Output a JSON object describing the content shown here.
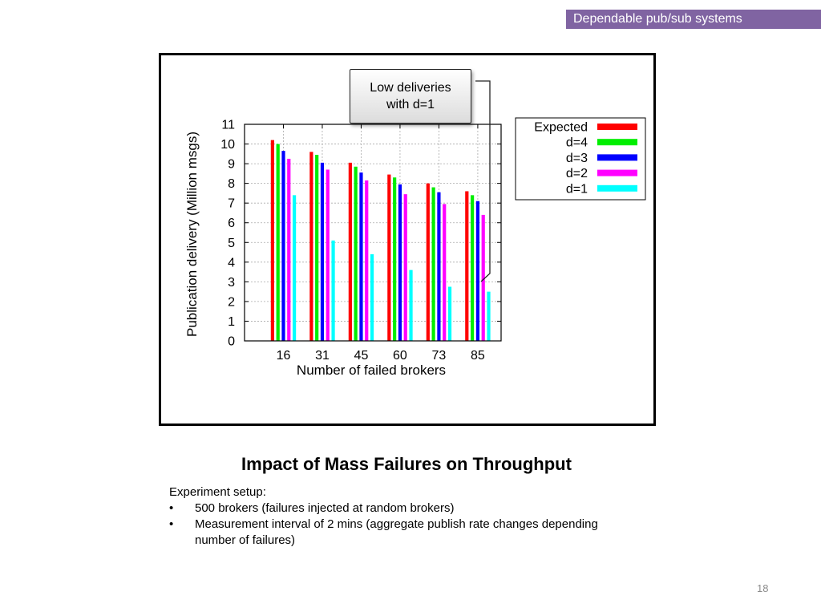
{
  "header": {
    "banner_text": "Dependable pub/sub systems"
  },
  "callout": {
    "line1": "Low deliveries",
    "line2": "with d=1"
  },
  "slide": {
    "title": "Impact of Mass Failures on Throughput",
    "setup_heading": "Experiment setup:",
    "bullets": [
      "500 brokers (failures injected at random brokers)",
      "Measurement interval of 2 mins (aggregate publish rate changes depending number of failures)"
    ],
    "bullet_glyph": "•",
    "page_number": "18"
  },
  "chart_data": {
    "type": "bar",
    "categories": [
      "16",
      "31",
      "45",
      "60",
      "73",
      "85"
    ],
    "series": [
      {
        "name": "Expected",
        "color": "#ff0000",
        "values": [
          10.2,
          9.6,
          9.05,
          8.45,
          8.0,
          7.6
        ]
      },
      {
        "name": "d=4",
        "color": "#00ee00",
        "values": [
          10.0,
          9.45,
          8.85,
          8.3,
          7.8,
          7.4
        ]
      },
      {
        "name": "d=3",
        "color": "#0000ff",
        "values": [
          9.65,
          9.05,
          8.55,
          7.95,
          7.55,
          7.1
        ]
      },
      {
        "name": "d=2",
        "color": "#ff00ff",
        "values": [
          9.25,
          8.7,
          8.15,
          7.45,
          6.95,
          6.4
        ]
      },
      {
        "name": "d=1",
        "color": "#00ffff",
        "values": [
          7.4,
          5.1,
          4.4,
          3.6,
          2.75,
          2.5
        ]
      }
    ],
    "xlabel": "Number of failed brokers",
    "ylabel": "Publication delivery (Million msgs)",
    "ylim": [
      0,
      11
    ],
    "yticks": [
      "0",
      "1",
      "2",
      "3",
      "4",
      "5",
      "6",
      "7",
      "8",
      "9",
      "10",
      "11"
    ],
    "grid": true,
    "legend_position": "outside-right"
  }
}
